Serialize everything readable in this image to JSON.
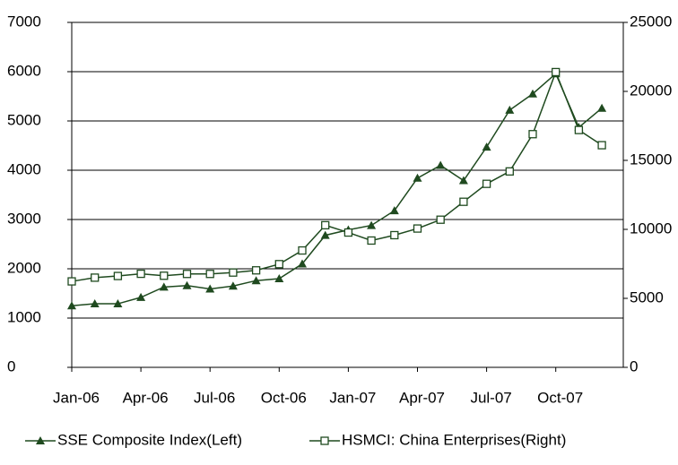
{
  "chart_data": {
    "type": "line",
    "categories": [
      "Jan-06",
      null,
      null,
      "Apr-06",
      null,
      null,
      "Jul-06",
      null,
      null,
      "Oct-06",
      null,
      null,
      "Jan-07",
      null,
      null,
      "Apr-07",
      null,
      null,
      "Jul-07",
      null,
      null,
      "Oct-07",
      null,
      null
    ],
    "series": [
      {
        "name": "SSE Composite Index(Left)",
        "color": "#1f4a1f",
        "marker": "triangle",
        "values": [
          1250,
          1290,
          1290,
          1420,
          1630,
          1660,
          1590,
          1650,
          1760,
          1800,
          2100,
          2680,
          2790,
          2880,
          3180,
          3840,
          4100,
          3790,
          4470,
          5220,
          5550,
          5960,
          4870,
          5260
        ]
      },
      {
        "name": "HSMCI: China Enterprises(Right)",
        "color": "#1f4a1f",
        "marker": "square",
        "axis": "y2",
        "values": [
          6230,
          6500,
          6620,
          6780,
          6640,
          6770,
          6770,
          6870,
          7030,
          7480,
          8470,
          10300,
          9770,
          9190,
          9580,
          10060,
          10700,
          12000,
          13300,
          14200,
          16900,
          21400,
          17200,
          16100
        ]
      }
    ],
    "ylim": [
      0,
      7000
    ],
    "yticks": [
      0,
      1000,
      2000,
      3000,
      4000,
      5000,
      6000,
      7000
    ],
    "y2lim": [
      0,
      25000
    ],
    "y2ticks": [
      0,
      5000,
      10000,
      15000,
      20000,
      25000
    ],
    "grid": true
  }
}
